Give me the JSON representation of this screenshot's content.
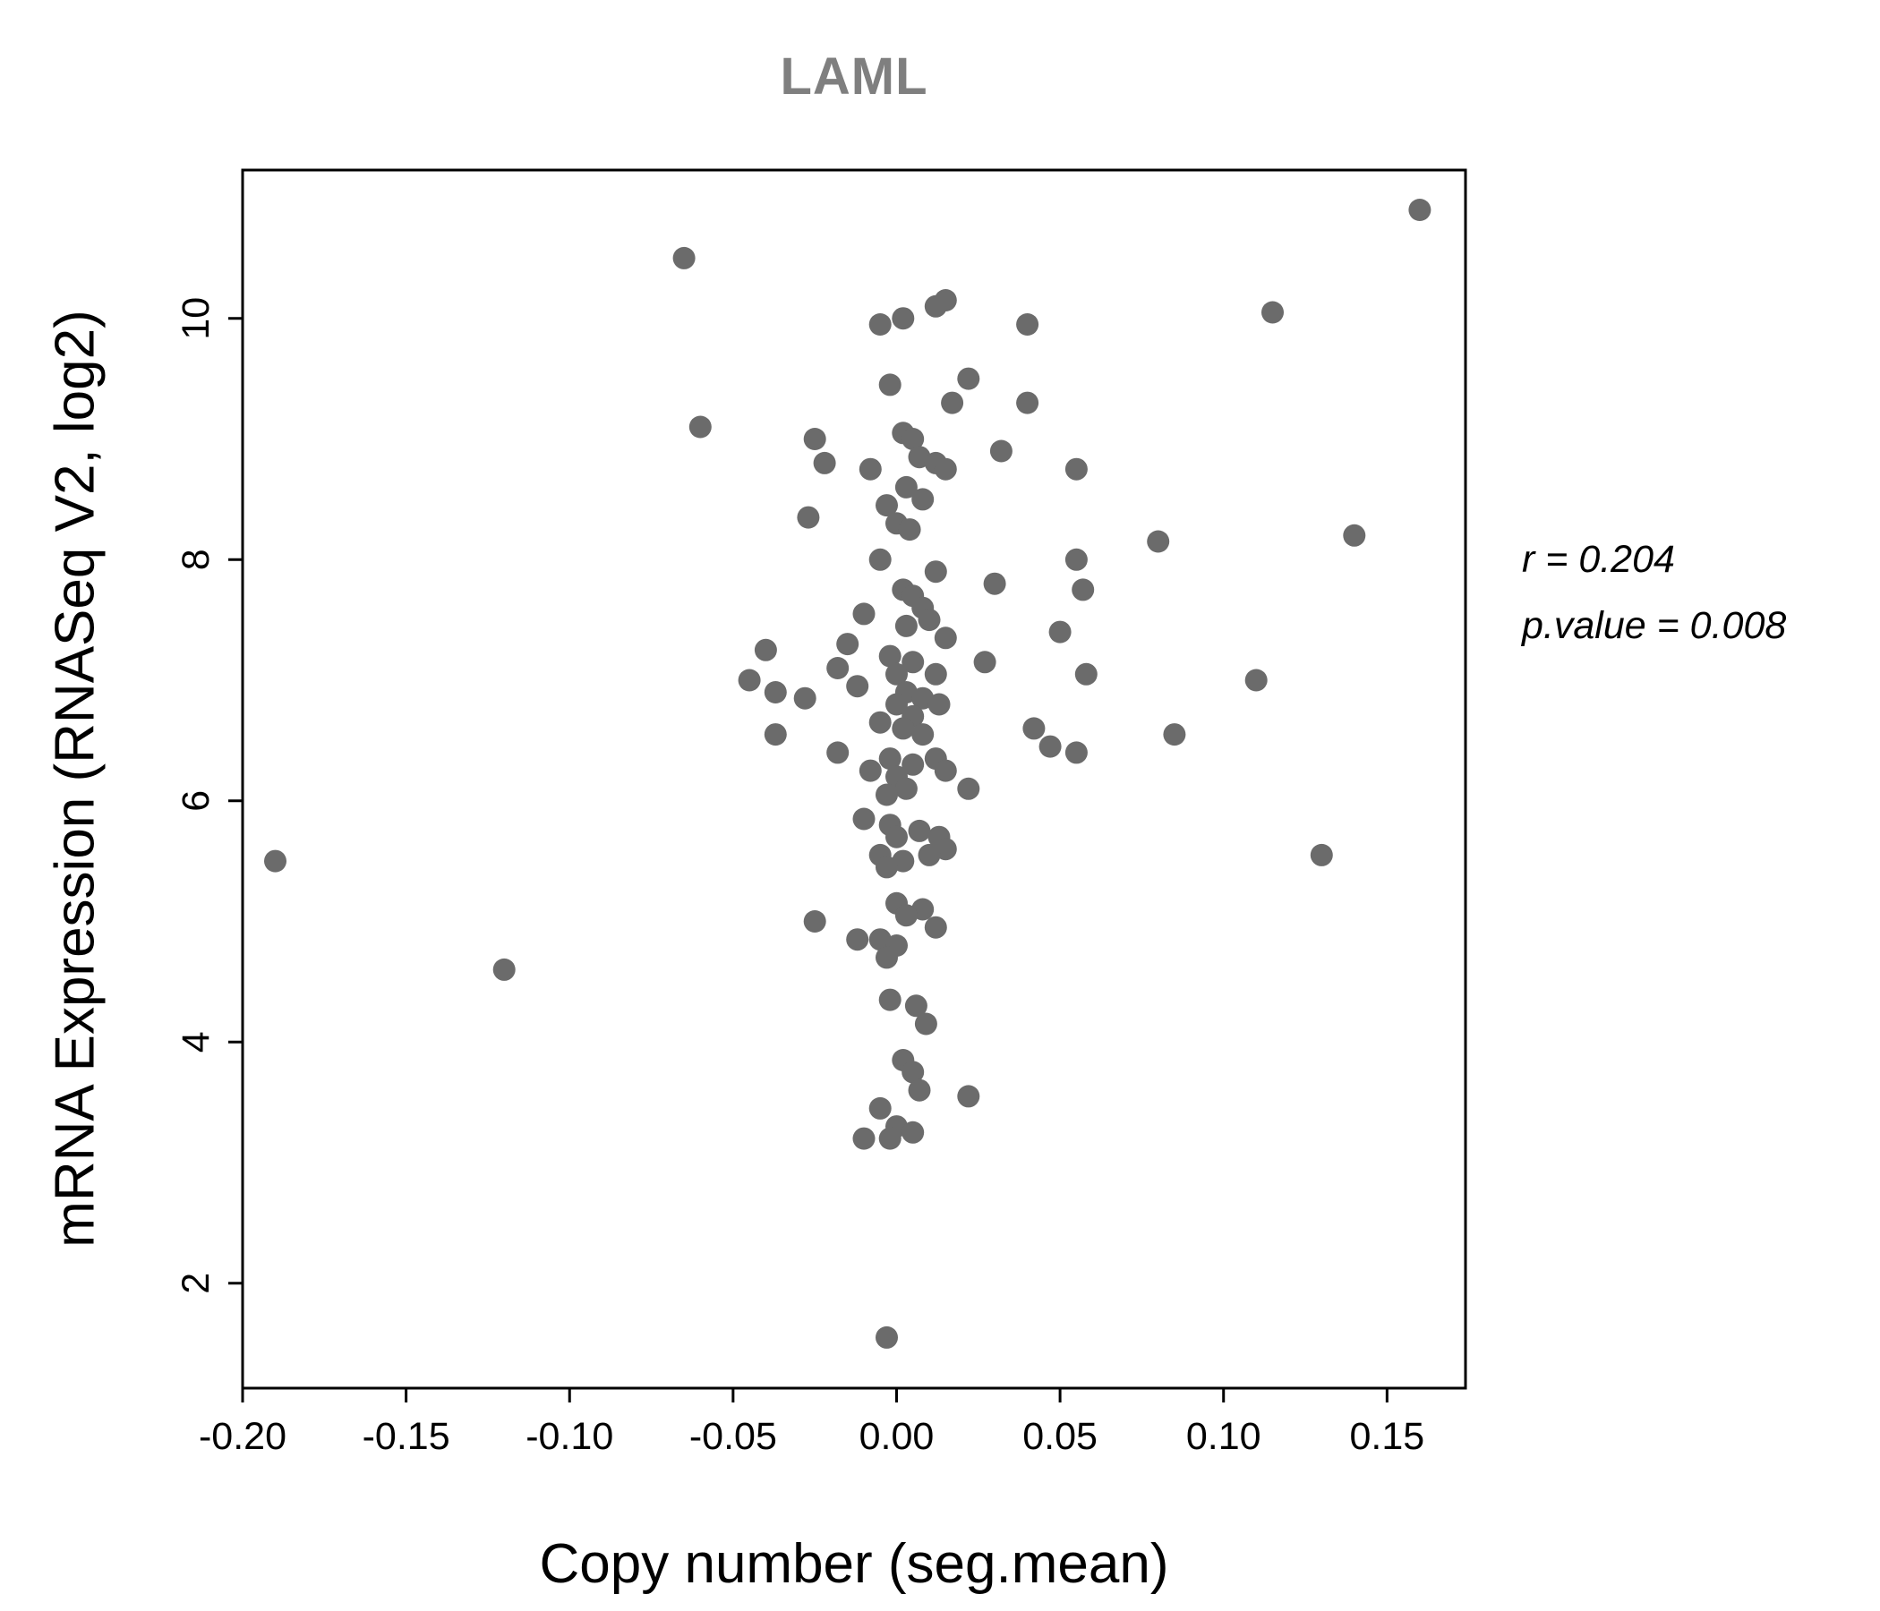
{
  "chart_data": {
    "type": "scatter",
    "title": "LAML",
    "xlabel": "Copy number (seg.mean)",
    "ylabel": "mRNA Expression (RNASeq V2, log2)",
    "xlim": [
      -0.2,
      0.174
    ],
    "ylim": [
      1.13,
      11.23
    ],
    "x_ticks": [
      -0.2,
      -0.15,
      -0.1,
      -0.05,
      0.0,
      0.05,
      0.1,
      0.15
    ],
    "x_tick_labels": [
      "-0.20",
      "-0.15",
      "-0.10",
      "-0.05",
      "0.00",
      "0.05",
      "0.10",
      "0.15"
    ],
    "y_ticks": [
      2,
      4,
      6,
      8,
      10
    ],
    "y_tick_labels": [
      "2",
      "4",
      "6",
      "8",
      "10"
    ],
    "grid": false,
    "legend": null,
    "point_color": "#6b6b6b",
    "title_color": "#7f7f7f",
    "axis_color": "#000000",
    "annotation": {
      "line1": "r = 0.204",
      "line2": "p.value = 0.008"
    },
    "points": [
      [
        -0.19,
        5.5
      ],
      [
        -0.12,
        4.6
      ],
      [
        -0.065,
        10.5
      ],
      [
        -0.06,
        9.1
      ],
      [
        0.16,
        10.9
      ],
      [
        0.115,
        10.05
      ],
      [
        0.14,
        8.2
      ],
      [
        0.13,
        5.55
      ],
      [
        0.11,
        7.0
      ],
      [
        0.08,
        8.15
      ],
      [
        0.085,
        6.55
      ],
      [
        0.012,
        10.1
      ],
      [
        0.015,
        10.15
      ],
      [
        -0.005,
        9.95
      ],
      [
        0.002,
        10.0
      ],
      [
        0.04,
        9.95
      ],
      [
        -0.002,
        9.45
      ],
      [
        0.022,
        9.5
      ],
      [
        0.04,
        9.3
      ],
      [
        0.017,
        9.3
      ],
      [
        0.002,
        9.05
      ],
      [
        -0.025,
        9.0
      ],
      [
        0.032,
        8.9
      ],
      [
        0.005,
        9.0
      ],
      [
        -0.022,
        8.8
      ],
      [
        0.007,
        8.85
      ],
      [
        0.012,
        8.8
      ],
      [
        0.015,
        8.75
      ],
      [
        -0.008,
        8.75
      ],
      [
        0.055,
        8.75
      ],
      [
        0.003,
        8.6
      ],
      [
        0.008,
        8.5
      ],
      [
        -0.003,
        8.45
      ],
      [
        -0.027,
        8.35
      ],
      [
        0.0,
        8.3
      ],
      [
        0.004,
        8.25
      ],
      [
        -0.005,
        8.0
      ],
      [
        0.055,
        8.0
      ],
      [
        0.012,
        7.9
      ],
      [
        0.03,
        7.8
      ],
      [
        0.057,
        7.75
      ],
      [
        0.002,
        7.75
      ],
      [
        0.005,
        7.7
      ],
      [
        0.008,
        7.6
      ],
      [
        -0.01,
        7.55
      ],
      [
        0.01,
        7.5
      ],
      [
        0.003,
        7.45
      ],
      [
        -0.04,
        7.25
      ],
      [
        -0.015,
        7.3
      ],
      [
        0.015,
        7.35
      ],
      [
        0.05,
        7.4
      ],
      [
        -0.002,
        7.2
      ],
      [
        0.005,
        7.15
      ],
      [
        0.027,
        7.15
      ],
      [
        -0.018,
        7.1
      ],
      [
        0.0,
        7.05
      ],
      [
        0.012,
        7.05
      ],
      [
        0.058,
        7.05
      ],
      [
        -0.045,
        7.0
      ],
      [
        -0.037,
        6.9
      ],
      [
        -0.028,
        6.85
      ],
      [
        -0.012,
        6.95
      ],
      [
        0.003,
        6.9
      ],
      [
        0.008,
        6.85
      ],
      [
        0.0,
        6.8
      ],
      [
        0.013,
        6.8
      ],
      [
        0.005,
        6.7
      ],
      [
        -0.005,
        6.65
      ],
      [
        0.002,
        6.6
      ],
      [
        -0.037,
        6.55
      ],
      [
        0.042,
        6.6
      ],
      [
        0.008,
        6.55
      ],
      [
        -0.018,
        6.4
      ],
      [
        0.047,
        6.45
      ],
      [
        0.055,
        6.4
      ],
      [
        -0.002,
        6.35
      ],
      [
        0.012,
        6.35
      ],
      [
        0.005,
        6.3
      ],
      [
        -0.008,
        6.25
      ],
      [
        0.015,
        6.25
      ],
      [
        0.0,
        6.2
      ],
      [
        0.003,
        6.1
      ],
      [
        0.022,
        6.1
      ],
      [
        -0.003,
        6.05
      ],
      [
        -0.01,
        5.85
      ],
      [
        -0.002,
        5.8
      ],
      [
        0.007,
        5.75
      ],
      [
        0.0,
        5.7
      ],
      [
        0.013,
        5.7
      ],
      [
        0.015,
        5.6
      ],
      [
        -0.005,
        5.55
      ],
      [
        0.002,
        5.5
      ],
      [
        0.01,
        5.55
      ],
      [
        -0.003,
        5.45
      ],
      [
        0.0,
        5.15
      ],
      [
        0.008,
        5.1
      ],
      [
        -0.025,
        5.0
      ],
      [
        0.003,
        5.05
      ],
      [
        0.012,
        4.95
      ],
      [
        -0.012,
        4.85
      ],
      [
        -0.005,
        4.85
      ],
      [
        0.0,
        4.8
      ],
      [
        -0.003,
        4.7
      ],
      [
        -0.002,
        4.35
      ],
      [
        0.006,
        4.3
      ],
      [
        0.009,
        4.15
      ],
      [
        0.002,
        3.85
      ],
      [
        0.005,
        3.75
      ],
      [
        0.007,
        3.6
      ],
      [
        0.022,
        3.55
      ],
      [
        -0.005,
        3.45
      ],
      [
        0.0,
        3.3
      ],
      [
        0.005,
        3.25
      ],
      [
        -0.01,
        3.2
      ],
      [
        -0.002,
        3.2
      ],
      [
        -0.003,
        1.55
      ]
    ]
  }
}
